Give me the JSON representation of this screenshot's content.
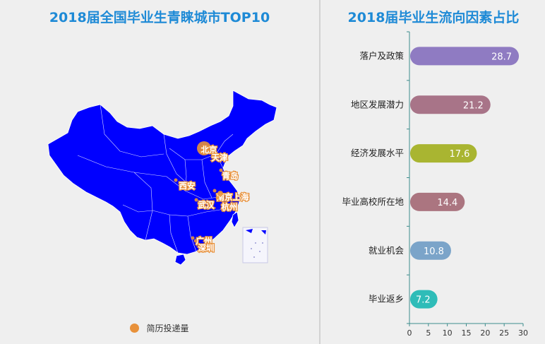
{
  "colors": {
    "map_fill": "#0000ff",
    "city_marker": "#e8913b",
    "title": "#1e8ad6",
    "axis": "#3d8c8c"
  },
  "map": {
    "title": "2018届全国毕业生青睐城市TOP10",
    "legend_label": "简历投递量",
    "cities": [
      {
        "name": "北京",
        "size": "large"
      },
      {
        "name": "天津",
        "size": "medium"
      },
      {
        "name": "青岛",
        "size": "small"
      },
      {
        "name": "西安",
        "size": "small"
      },
      {
        "name": "南京",
        "size": "small"
      },
      {
        "name": "上海",
        "size": "medium"
      },
      {
        "name": "杭州",
        "size": "small"
      },
      {
        "name": "武汉",
        "size": "small"
      },
      {
        "name": "广州",
        "size": "small"
      },
      {
        "name": "深圳",
        "size": "small"
      }
    ]
  },
  "chart_data": {
    "type": "bar",
    "orientation": "horizontal",
    "title": "2018届毕业生流向因素占比",
    "categories": [
      "落户及政策",
      "地区发展潜力",
      "经济发展水平",
      "毕业高校所在地",
      "就业机会",
      "毕业返乡"
    ],
    "values": [
      28.7,
      21.2,
      17.6,
      14.4,
      10.8,
      7.2
    ],
    "value_labels": [
      "28.7",
      "21.2",
      "17.6",
      "14.4",
      "10.8",
      "7.2"
    ],
    "colors": [
      "#8f7bc2",
      "#a87488",
      "#a9b531",
      "#ab7580",
      "#7ba4c9",
      "#2fbcb8"
    ],
    "xlim": [
      0,
      30
    ],
    "xticks": [
      "0",
      "5",
      "10",
      "15",
      "20",
      "25",
      "30"
    ],
    "grid": false,
    "xlabel": "",
    "ylabel": ""
  }
}
